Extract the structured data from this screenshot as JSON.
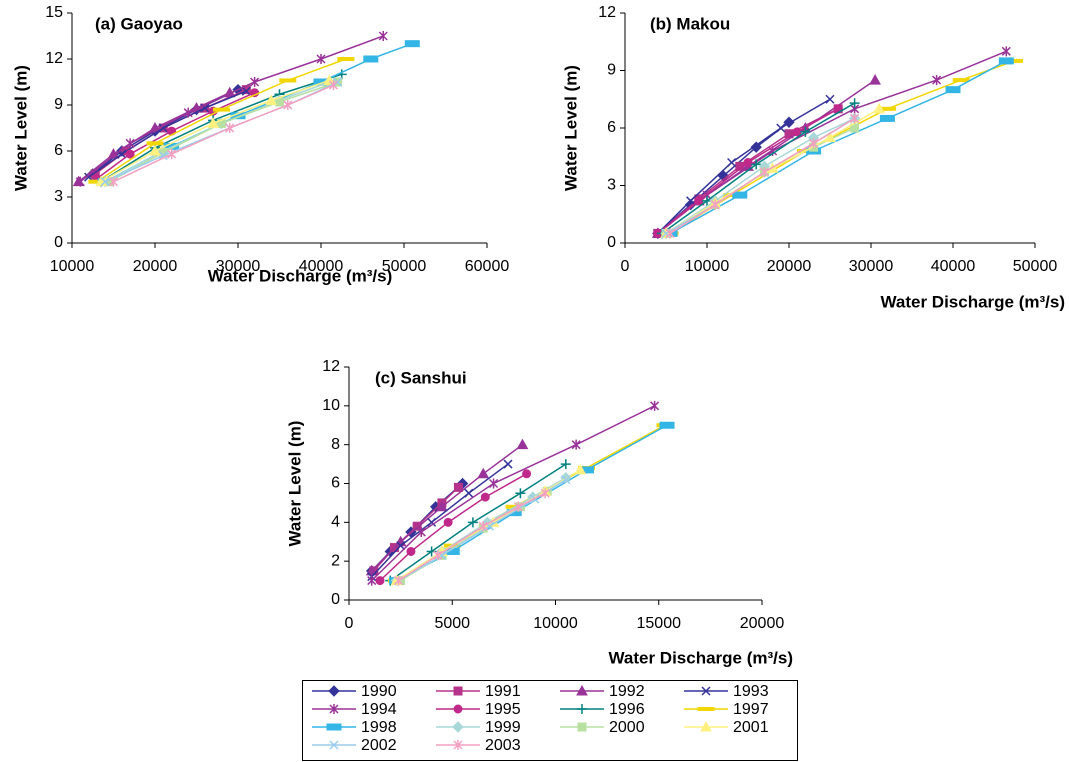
{
  "chart_data": [
    {
      "type": "line",
      "title": "(a) Gaoyao",
      "xlabel": "Water Discharge (m³/s)",
      "ylabel": "Water Level (m)",
      "xlim": [
        10000,
        60000
      ],
      "xticks": [
        10000,
        20000,
        30000,
        40000,
        50000,
        60000
      ],
      "ylim": [
        0,
        15
      ],
      "yticks": [
        0,
        3,
        6,
        9,
        12,
        15
      ],
      "series": [
        {
          "name": "1990",
          "color": "#333399",
          "marker": "diamond",
          "x": [
            12500,
            16000,
            20000,
            25000,
            30000
          ],
          "y": [
            4.5,
            6,
            7.3,
            8.7,
            10
          ]
        },
        {
          "name": "1991",
          "color": "#b5338a",
          "marker": "square",
          "x": [
            12800,
            16500,
            21000,
            26000,
            31000
          ],
          "y": [
            4.5,
            6,
            7.5,
            8.8,
            10
          ]
        },
        {
          "name": "1992",
          "color": "#993399",
          "marker": "triangle",
          "x": [
            10800,
            15000,
            20000,
            25000,
            29000
          ],
          "y": [
            4,
            5.8,
            7.5,
            8.8,
            9.8
          ]
        },
        {
          "name": "1993",
          "color": "#333399",
          "marker": "x",
          "x": [
            12000,
            16000,
            21000,
            26000,
            31000
          ],
          "y": [
            4.3,
            5.8,
            7.5,
            8.8,
            9.9
          ]
        },
        {
          "name": "1994",
          "color": "#993399",
          "marker": "star",
          "x": [
            11000,
            17000,
            24000,
            32000,
            40000,
            47500
          ],
          "y": [
            4,
            6.5,
            8.5,
            10.5,
            12,
            13.5
          ]
        },
        {
          "name": "1995",
          "color": "#c0288a",
          "marker": "circle",
          "x": [
            13000,
            17000,
            22000,
            27000,
            32000
          ],
          "y": [
            4.2,
            5.8,
            7.3,
            8.6,
            9.8
          ]
        },
        {
          "name": "1996",
          "color": "#008080",
          "marker": "plus",
          "x": [
            13500,
            20000,
            27000,
            35000,
            42500
          ],
          "y": [
            4,
            6.2,
            8,
            9.7,
            11
          ]
        },
        {
          "name": "1997",
          "color": "#f2d600",
          "marker": "dash",
          "x": [
            13000,
            20000,
            28000,
            36000,
            43000
          ],
          "y": [
            4,
            6.5,
            8.7,
            10.6,
            12
          ]
        },
        {
          "name": "1998",
          "color": "#33b5e5",
          "marker": "rect",
          "x": [
            14000,
            22000,
            30000,
            40000,
            46000,
            51000
          ],
          "y": [
            4,
            6.3,
            8.3,
            10.5,
            12,
            13
          ]
        },
        {
          "name": "1999",
          "color": "#a8d8d8",
          "marker": "diamond",
          "x": [
            14000,
            21000,
            28000,
            35000,
            41000
          ],
          "y": [
            4,
            6,
            7.8,
            9.3,
            10.5
          ]
        },
        {
          "name": "2000",
          "color": "#b8e0a0",
          "marker": "square",
          "x": [
            14500,
            21000,
            28000,
            35000,
            42000
          ],
          "y": [
            4,
            5.9,
            7.8,
            9.2,
            10.5
          ]
        },
        {
          "name": "2001",
          "color": "#fff080",
          "marker": "triangle",
          "x": [
            13500,
            20000,
            27000,
            34000,
            41000
          ],
          "y": [
            4,
            6,
            7.8,
            9.3,
            10.6
          ]
        },
        {
          "name": "2002",
          "color": "#99ccee",
          "marker": "x",
          "x": [
            14000,
            21000,
            29000,
            36000,
            42000
          ],
          "y": [
            4,
            5.7,
            7.5,
            9,
            10.5
          ]
        },
        {
          "name": "2003",
          "color": "#f4a0c0",
          "marker": "star",
          "x": [
            15000,
            22000,
            29000,
            36000,
            41500
          ],
          "y": [
            4,
            5.8,
            7.5,
            9,
            10.3
          ]
        }
      ]
    },
    {
      "type": "line",
      "title": "(b) Makou",
      "xlabel": "Water Discharge (m³/s)",
      "ylabel": "Water Level (m)",
      "xlim": [
        0,
        50000
      ],
      "xticks": [
        0,
        10000,
        20000,
        30000,
        40000,
        50000
      ],
      "ylim": [
        0,
        12
      ],
      "yticks": [
        0,
        3,
        6,
        9,
        12
      ],
      "series": [
        {
          "name": "1990",
          "color": "#333399",
          "marker": "diamond",
          "x": [
            4000,
            8000,
            12000,
            16000,
            20000
          ],
          "y": [
            0.5,
            2,
            3.5,
            5,
            6.3
          ]
        },
        {
          "name": "1991",
          "color": "#b5338a",
          "marker": "square",
          "x": [
            4000,
            9000,
            14000,
            20000,
            26000
          ],
          "y": [
            0.5,
            2.3,
            4,
            5.7,
            7
          ]
        },
        {
          "name": "1992",
          "color": "#993399",
          "marker": "triangle",
          "x": [
            4000,
            9000,
            15000,
            22000,
            30500
          ],
          "y": [
            0.5,
            2.2,
            4,
            6,
            8.5
          ]
        },
        {
          "name": "1993",
          "color": "#333399",
          "marker": "x",
          "x": [
            4000,
            8000,
            13000,
            19000,
            25000
          ],
          "y": [
            0.5,
            2.2,
            4.2,
            6,
            7.5
          ]
        },
        {
          "name": "1994",
          "color": "#993399",
          "marker": "star",
          "x": [
            4000,
            10000,
            18000,
            28000,
            38000,
            46500
          ],
          "y": [
            0.5,
            2.5,
            4.8,
            7,
            8.5,
            10
          ]
        },
        {
          "name": "1995",
          "color": "#c0288a",
          "marker": "circle",
          "x": [
            4000,
            9000,
            15000,
            21000,
            26000
          ],
          "y": [
            0.5,
            2.2,
            4.2,
            5.8,
            7
          ]
        },
        {
          "name": "1996",
          "color": "#008080",
          "marker": "plus",
          "x": [
            4500,
            10000,
            16000,
            22000,
            28000
          ],
          "y": [
            0.5,
            2.2,
            4.1,
            5.8,
            7.3
          ]
        },
        {
          "name": "1997",
          "color": "#f2d600",
          "marker": "dash",
          "x": [
            5500,
            13000,
            22000,
            32000,
            41000,
            47500
          ],
          "y": [
            0.5,
            2.5,
            4.8,
            7,
            8.5,
            9.5
          ]
        },
        {
          "name": "1998",
          "color": "#33b5e5",
          "marker": "rect",
          "x": [
            5500,
            14000,
            23000,
            32000,
            40000,
            46500
          ],
          "y": [
            0.5,
            2.5,
            4.8,
            6.5,
            8,
            9.5
          ]
        },
        {
          "name": "1999",
          "color": "#a8d8d8",
          "marker": "diamond",
          "x": [
            5000,
            11000,
            17000,
            23000,
            28000
          ],
          "y": [
            0.5,
            2.2,
            4,
            5.5,
            6.5
          ]
        },
        {
          "name": "2000",
          "color": "#b8e0a0",
          "marker": "square",
          "x": [
            5000,
            11000,
            17000,
            23000,
            28000
          ],
          "y": [
            0.5,
            2,
            3.7,
            5,
            6
          ]
        },
        {
          "name": "2001",
          "color": "#fff080",
          "marker": "triangle",
          "x": [
            5000,
            11000,
            18000,
            25000,
            31000
          ],
          "y": [
            0.5,
            2.1,
            3.9,
            5.5,
            7
          ]
        },
        {
          "name": "2002",
          "color": "#99ccee",
          "marker": "x",
          "x": [
            5000,
            11000,
            17000,
            23000,
            28000
          ],
          "y": [
            0.5,
            2,
            3.7,
            5.2,
            6.5
          ]
        },
        {
          "name": "2003",
          "color": "#f4a0c0",
          "marker": "star",
          "x": [
            5500,
            11000,
            17000,
            23000,
            28000
          ],
          "y": [
            0.5,
            2,
            3.7,
            5.2,
            6.5
          ]
        }
      ]
    },
    {
      "type": "line",
      "title": "(c) Sanshui",
      "xlabel": "Water Discharge (m³/s)",
      "ylabel": "Water Level (m)",
      "xlim": [
        0,
        20000
      ],
      "xticks": [
        0,
        5000,
        10000,
        15000,
        20000
      ],
      "ylim": [
        0,
        12
      ],
      "yticks": [
        0,
        2,
        4,
        6,
        8,
        10,
        12
      ],
      "series": [
        {
          "name": "1990",
          "color": "#333399",
          "marker": "diamond",
          "x": [
            1100,
            2000,
            3000,
            4200,
            5500
          ],
          "y": [
            1.5,
            2.5,
            3.5,
            4.8,
            6
          ]
        },
        {
          "name": "1991",
          "color": "#b5338a",
          "marker": "square",
          "x": [
            1200,
            2200,
            3300,
            4500,
            5300
          ],
          "y": [
            1.5,
            2.7,
            3.8,
            5,
            5.8
          ]
        },
        {
          "name": "1992",
          "color": "#993399",
          "marker": "triangle",
          "x": [
            1100,
            2500,
            4500,
            6500,
            8400
          ],
          "y": [
            1.5,
            3,
            4.8,
            6.5,
            8
          ]
        },
        {
          "name": "1993",
          "color": "#333399",
          "marker": "x",
          "x": [
            1100,
            2500,
            4000,
            5800,
            7700
          ],
          "y": [
            1.2,
            2.8,
            4,
            5.5,
            7
          ]
        },
        {
          "name": "1994",
          "color": "#993399",
          "marker": "star",
          "x": [
            1100,
            3500,
            7000,
            11000,
            14800
          ],
          "y": [
            1,
            3.5,
            6,
            8,
            10
          ]
        },
        {
          "name": "1995",
          "color": "#c0288a",
          "marker": "circle",
          "x": [
            1500,
            3000,
            4800,
            6600,
            8600
          ],
          "y": [
            1,
            2.5,
            4,
            5.3,
            6.5
          ]
        },
        {
          "name": "1996",
          "color": "#008080",
          "marker": "plus",
          "x": [
            2000,
            4000,
            6000,
            8300,
            10500
          ],
          "y": [
            1,
            2.5,
            4,
            5.5,
            7
          ]
        },
        {
          "name": "1997",
          "color": "#f2d600",
          "marker": "dash",
          "x": [
            2300,
            5000,
            8000,
            11500,
            15300
          ],
          "y": [
            1,
            2.8,
            4.8,
            6.8,
            9
          ]
        },
        {
          "name": "1998",
          "color": "#33b5e5",
          "marker": "rect",
          "x": [
            2300,
            5000,
            8000,
            11500,
            15400
          ],
          "y": [
            1,
            2.5,
            4.5,
            6.7,
            9
          ]
        },
        {
          "name": "1999",
          "color": "#a8d8d8",
          "marker": "diamond",
          "x": [
            2300,
            4500,
            6700,
            8900,
            10500
          ],
          "y": [
            1,
            2.5,
            4,
            5.3,
            6.3
          ]
        },
        {
          "name": "2000",
          "color": "#b8e0a0",
          "marker": "square",
          "x": [
            2500,
            4500,
            6500,
            8300,
            9600
          ],
          "y": [
            1,
            2.3,
            3.7,
            4.8,
            5.6
          ]
        },
        {
          "name": "2001",
          "color": "#fff080",
          "marker": "triangle",
          "x": [
            2300,
            4500,
            7000,
            9500,
            11200
          ],
          "y": [
            1,
            2.5,
            4,
            5.6,
            6.7
          ]
        },
        {
          "name": "2002",
          "color": "#99ccee",
          "marker": "x",
          "x": [
            2400,
            4500,
            6800,
            9000,
            10500
          ],
          "y": [
            1,
            2.3,
            3.8,
            5.2,
            6.2
          ]
        },
        {
          "name": "2003",
          "color": "#f4a0c0",
          "marker": "star",
          "x": [
            2400,
            4300,
            6500,
            8200,
            9500
          ],
          "y": [
            1,
            2.3,
            3.8,
            4.8,
            5.5
          ]
        }
      ]
    }
  ]
}
